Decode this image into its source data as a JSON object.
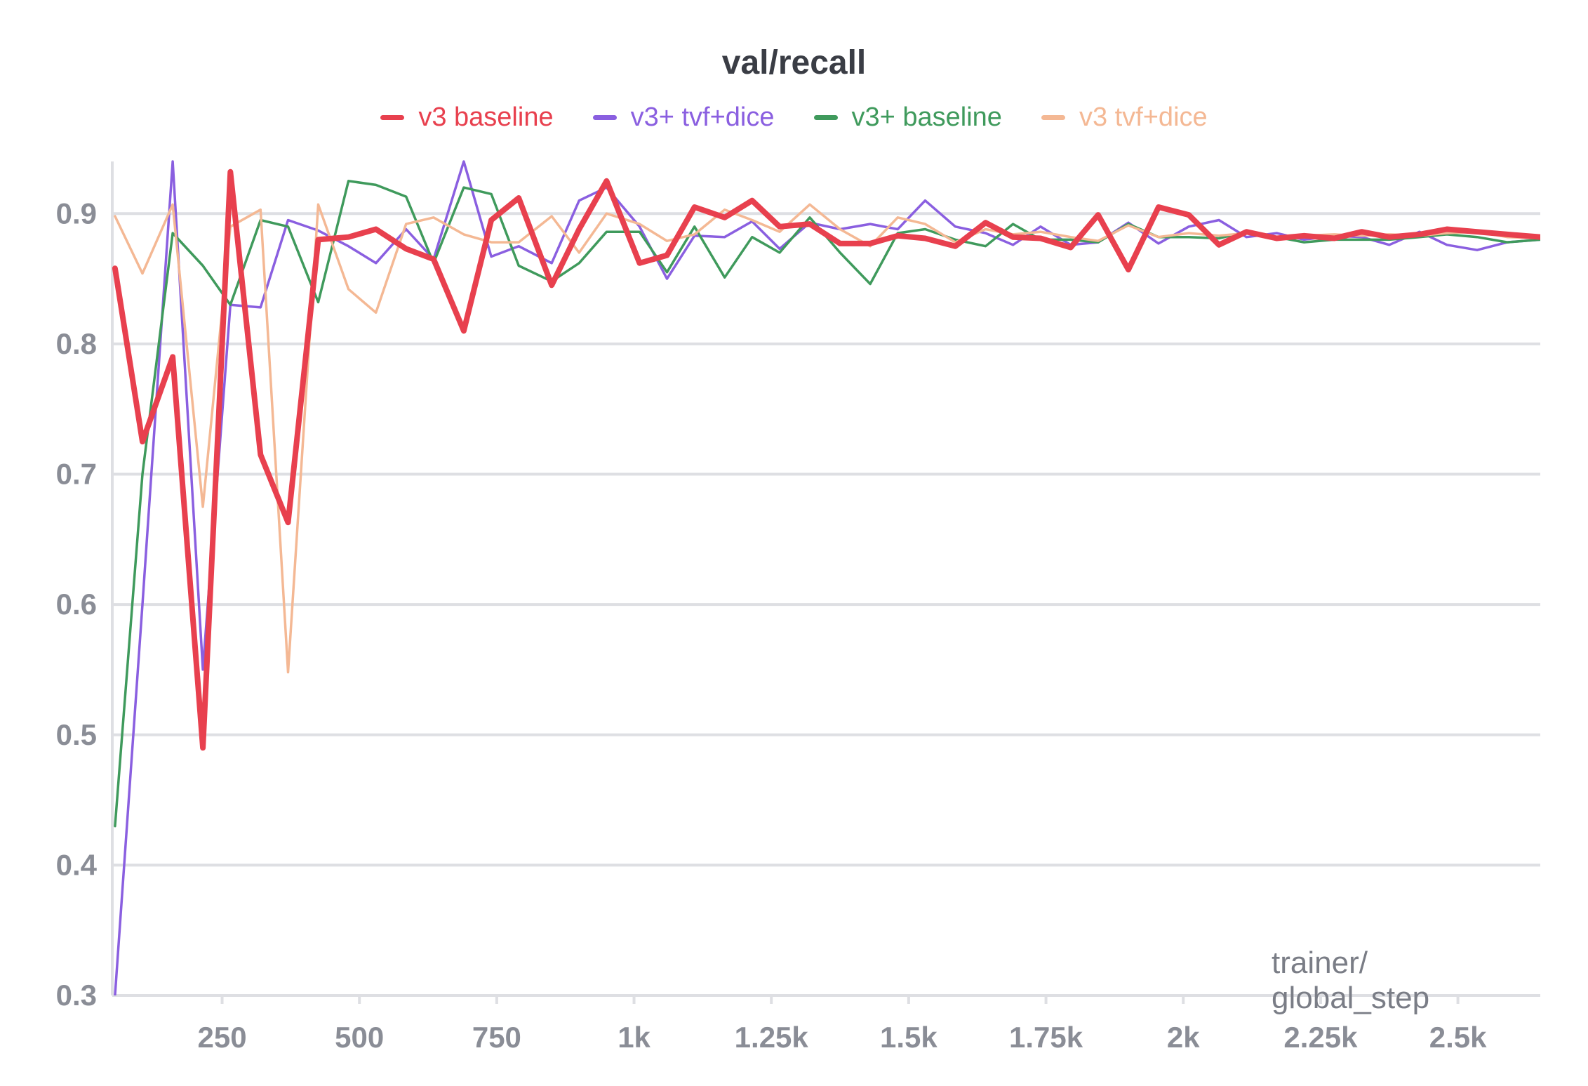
{
  "chart_data": {
    "type": "line",
    "title": "val/recall",
    "xlabel": "trainer/\nglobal_step",
    "ylabel": "",
    "xlim": [
      50,
      2650
    ],
    "ylim": [
      0.3,
      0.94
    ],
    "x_ticks": [
      250,
      500,
      750,
      1000,
      1250,
      1500,
      1750,
      2000,
      2250,
      2500
    ],
    "x_tick_labels": [
      "250",
      "500",
      "750",
      "1k",
      "1.25k",
      "1.5k",
      "1.75k",
      "2k",
      "2.25k",
      "2.5k"
    ],
    "y_ticks": [
      0.3,
      0.4,
      0.5,
      0.6,
      0.7,
      0.8,
      0.9
    ],
    "y_tick_labels": [
      "0.3",
      "0.4",
      "0.5",
      "0.6",
      "0.7",
      "0.8",
      "0.9"
    ],
    "grid": true,
    "legend_position": "top",
    "series": [
      {
        "name": "v3+ tvf+dice",
        "color": "#8a5fe0",
        "x": [
          55,
          105,
          160,
          215,
          265,
          320,
          370,
          425,
          480,
          530,
          585,
          635,
          690,
          740,
          790,
          850,
          900,
          950,
          1010,
          1060,
          1110,
          1165,
          1215,
          1265,
          1320,
          1375,
          1430,
          1480,
          1530,
          1585,
          1640,
          1690,
          1740,
          1795,
          1845,
          1900,
          1955,
          2010,
          2065,
          2115,
          2170,
          2220,
          2275,
          2325,
          2375,
          2430,
          2480,
          2535,
          2590,
          2650
        ],
        "y": [
          0.3,
          0.6,
          0.94,
          0.55,
          0.83,
          0.828,
          0.895,
          0.887,
          0.875,
          0.862,
          0.888,
          0.865,
          0.94,
          0.867,
          0.875,
          0.862,
          0.91,
          0.92,
          0.89,
          0.85,
          0.883,
          0.882,
          0.894,
          0.873,
          0.893,
          0.888,
          0.892,
          0.888,
          0.91,
          0.89,
          0.885,
          0.876,
          0.89,
          0.876,
          0.878,
          0.893,
          0.877,
          0.89,
          0.895,
          0.882,
          0.885,
          0.88,
          0.883,
          0.882,
          0.876,
          0.886,
          0.876,
          0.872,
          0.878,
          0.88
        ]
      },
      {
        "name": "v3+ baseline",
        "color": "#3f9a5c",
        "x": [
          55,
          105,
          160,
          215,
          265,
          320,
          370,
          425,
          480,
          530,
          585,
          635,
          690,
          740,
          790,
          850,
          900,
          950,
          1010,
          1060,
          1110,
          1165,
          1215,
          1265,
          1320,
          1375,
          1430,
          1480,
          1530,
          1585,
          1640,
          1690,
          1740,
          1795,
          1845,
          1900,
          1955,
          2010,
          2065,
          2115,
          2170,
          2220,
          2275,
          2325,
          2375,
          2430,
          2480,
          2535,
          2590,
          2650
        ],
        "y": [
          0.43,
          0.7,
          0.885,
          0.86,
          0.83,
          0.895,
          0.89,
          0.832,
          0.925,
          0.922,
          0.913,
          0.862,
          0.92,
          0.915,
          0.86,
          0.848,
          0.862,
          0.886,
          0.886,
          0.855,
          0.89,
          0.851,
          0.882,
          0.87,
          0.897,
          0.87,
          0.846,
          0.885,
          0.888,
          0.88,
          0.875,
          0.892,
          0.88,
          0.88,
          0.878,
          0.892,
          0.882,
          0.882,
          0.881,
          0.886,
          0.882,
          0.878,
          0.88,
          0.88,
          0.88,
          0.882,
          0.884,
          0.882,
          0.878,
          0.88
        ]
      },
      {
        "name": "v3 tvf+dice",
        "color": "#f4b894",
        "x": [
          55,
          105,
          160,
          215,
          265,
          320,
          370,
          425,
          480,
          530,
          585,
          635,
          690,
          740,
          790,
          850,
          900,
          950,
          1010,
          1060,
          1110,
          1165,
          1215,
          1265,
          1320,
          1375,
          1430,
          1480,
          1530,
          1585,
          1640,
          1690,
          1740,
          1795,
          1845,
          1900,
          1955,
          2010,
          2065,
          2115,
          2170,
          2220,
          2275,
          2325,
          2375,
          2430,
          2480,
          2535,
          2590,
          2650
        ],
        "y": [
          0.898,
          0.854,
          0.907,
          0.675,
          0.89,
          0.903,
          0.548,
          0.907,
          0.842,
          0.824,
          0.892,
          0.897,
          0.884,
          0.878,
          0.878,
          0.898,
          0.87,
          0.9,
          0.892,
          0.879,
          0.884,
          0.903,
          0.895,
          0.886,
          0.907,
          0.888,
          0.875,
          0.897,
          0.892,
          0.878,
          0.888,
          0.884,
          0.886,
          0.882,
          0.879,
          0.891,
          0.882,
          0.885,
          0.883,
          0.885,
          0.881,
          0.883,
          0.884,
          0.883,
          0.884,
          0.883,
          0.885,
          0.886,
          0.882,
          0.881
        ]
      },
      {
        "name": "v3 baseline",
        "color": "#e8404e",
        "x": [
          55,
          105,
          160,
          215,
          265,
          320,
          370,
          425,
          480,
          530,
          585,
          635,
          690,
          740,
          790,
          850,
          900,
          950,
          1010,
          1060,
          1110,
          1165,
          1215,
          1265,
          1320,
          1375,
          1430,
          1480,
          1530,
          1585,
          1640,
          1690,
          1740,
          1795,
          1845,
          1900,
          1955,
          2010,
          2065,
          2115,
          2170,
          2220,
          2275,
          2325,
          2375,
          2430,
          2480,
          2535,
          2590,
          2650
        ],
        "y": [
          0.858,
          0.725,
          0.79,
          0.49,
          0.932,
          0.715,
          0.663,
          0.88,
          0.882,
          0.888,
          0.873,
          0.865,
          0.81,
          0.895,
          0.912,
          0.845,
          0.888,
          0.925,
          0.862,
          0.868,
          0.905,
          0.897,
          0.91,
          0.89,
          0.892,
          0.877,
          0.877,
          0.883,
          0.881,
          0.875,
          0.893,
          0.882,
          0.881,
          0.874,
          0.899,
          0.857,
          0.905,
          0.899,
          0.876,
          0.886,
          0.881,
          0.883,
          0.881,
          0.886,
          0.882,
          0.884,
          0.888,
          0.886,
          0.884,
          0.882
        ]
      }
    ],
    "legend_order": [
      "v3 baseline",
      "v3+ tvf+dice",
      "v3+ baseline",
      "v3 tvf+dice"
    ]
  }
}
